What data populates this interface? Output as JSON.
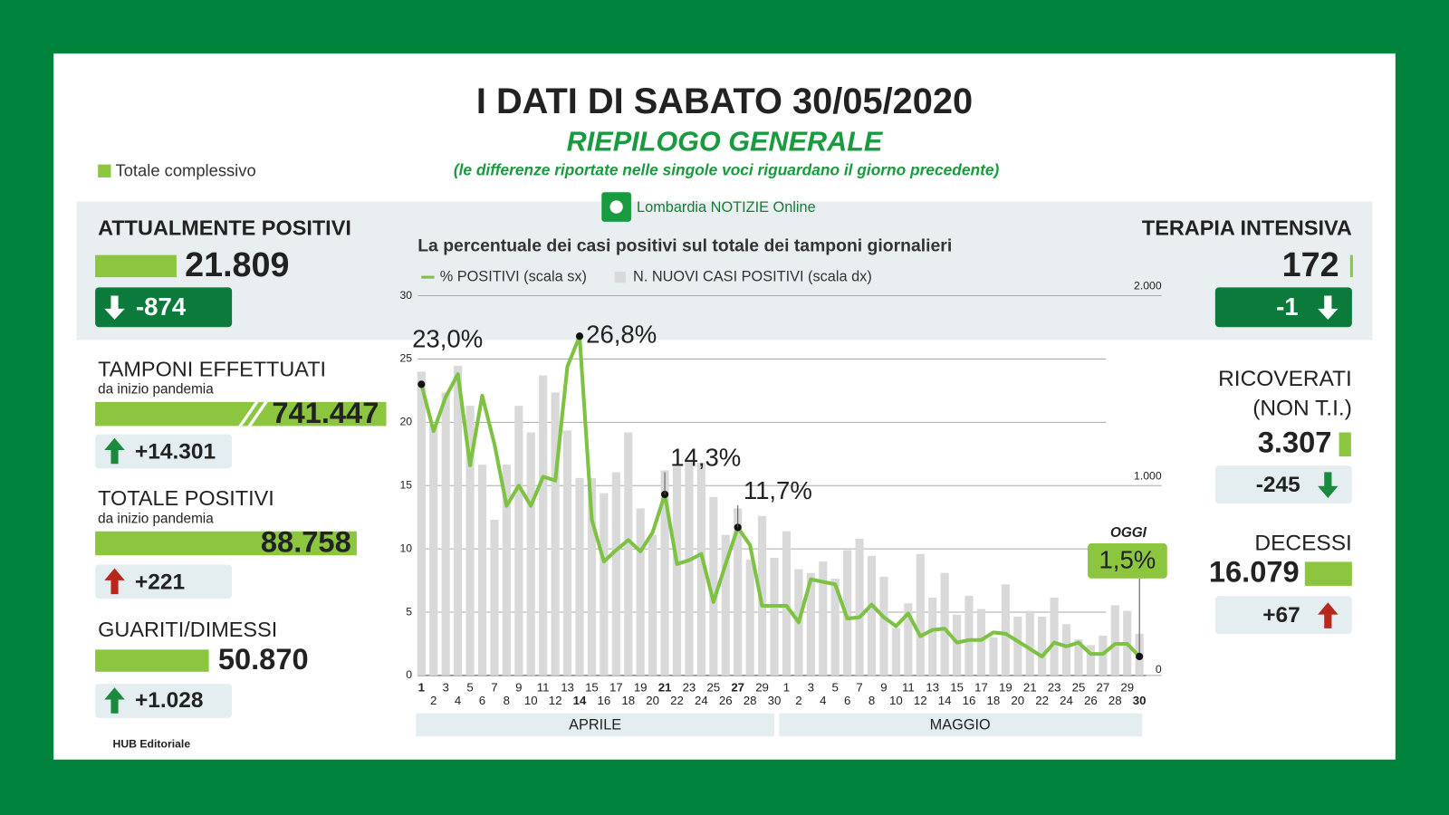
{
  "header": {
    "title": "I DATI DI SABATO 30/05/2020",
    "subtitle": "RIEPILOGO GENERALE",
    "note": "(le differenze riportate nelle singole voci riguardano il giorno precedente)",
    "legend": "Totale complessivo",
    "brand": "Lombardia NOTIZIE Online"
  },
  "left_stats": [
    {
      "label": "ATTUALMENTE POSITIVI",
      "value": "21.809",
      "change": "-874"
    },
    {
      "label": "TAMPONI EFFETTUATI",
      "sublabel": "da inizio pandemia",
      "value": "741.447",
      "change": "+14.301"
    },
    {
      "label": "TOTALE POSITIVI",
      "sublabel": "da inizio pandemia",
      "value": "88.758",
      "change": "+221"
    },
    {
      "label": "GUARITI/DIMESSI",
      "value": "50.870",
      "change": "+1.028"
    }
  ],
  "right_stats": [
    {
      "label": "TERAPIA INTENSIVA",
      "value": "172",
      "change": "-1"
    },
    {
      "label": "RICOVERATI",
      "sublabel": "(NON T.I.)",
      "value": "3.307",
      "change": "-245"
    },
    {
      "label": "DECESSI",
      "value": "16.079",
      "change": "+67"
    }
  ],
  "footer": "HUB Editoriale",
  "chart_data": {
    "type": "bar_line",
    "title": "La percentuale dei casi positivi sul totale dei tamponi giornalieri",
    "categories": [
      "1",
      "2",
      "3",
      "4",
      "5",
      "6",
      "7",
      "8",
      "9",
      "10",
      "11",
      "12",
      "13",
      "14",
      "15",
      "16",
      "17",
      "18",
      "19",
      "20",
      "21",
      "22",
      "23",
      "24",
      "25",
      "26",
      "27",
      "28",
      "29",
      "30",
      "1",
      "2",
      "3",
      "4",
      "5",
      "6",
      "7",
      "8",
      "9",
      "10",
      "11",
      "12",
      "13",
      "14",
      "15",
      "16",
      "17",
      "18",
      "19",
      "20",
      "21",
      "22",
      "23",
      "24",
      "25",
      "26",
      "27",
      "28",
      "29",
      "30"
    ],
    "months": [
      "APRILE",
      "MAGGIO"
    ],
    "annotation": "OGGI",
    "series": [
      {
        "name": "% POSITIVI (scala sx)",
        "type": "line",
        "color": "#7dc242",
        "values": [
          23.0,
          19.3,
          22,
          23.8,
          16.6,
          22.1,
          18.3,
          13.4,
          15,
          13.4,
          15.7,
          15.4,
          24.4,
          26.8,
          12.3,
          9,
          9.9,
          10.7,
          9.8,
          11.3,
          14.3,
          8.8,
          9.1,
          9.6,
          5.8,
          8.8,
          11.7,
          10.3,
          5.5,
          5.5,
          5.5,
          4.2,
          7.6,
          7.4,
          7.2,
          4.5,
          4.6,
          5.6,
          4.6,
          3.9,
          4.9,
          3.1,
          3.6,
          3.7,
          2.6,
          2.8,
          2.8,
          3.4,
          3.3,
          2.7,
          2.1,
          1.5,
          2.6,
          2.3,
          2.6,
          1.7,
          1.7,
          2.5,
          2.5,
          1.5
        ],
        "value_labels": [
          "23,0%",
          null,
          null,
          null,
          null,
          null,
          null,
          null,
          null,
          null,
          null,
          null,
          null,
          "26,8%",
          null,
          null,
          null,
          null,
          null,
          null,
          "14,3%",
          null,
          null,
          null,
          null,
          null,
          "11,7%",
          null,
          null,
          null,
          null,
          null,
          null,
          null,
          null,
          null,
          null,
          null,
          null,
          null,
          null,
          null,
          null,
          null,
          null,
          null,
          null,
          null,
          null,
          null,
          null,
          null,
          null,
          null,
          null,
          null,
          null,
          null,
          null,
          "1,5%"
        ]
      },
      {
        "name": "N. NUOVI CASI POSITIVI (scala dx)",
        "type": "bar",
        "axis": "y2",
        "color": "#d9d9d9",
        "values": [
          1600,
          1320,
          1490,
          1630,
          1420,
          1110,
          820,
          1110,
          1420,
          1280,
          1580,
          1490,
          1290,
          1040,
          1040,
          960,
          1070,
          1280,
          880,
          740,
          1080,
          1100,
          1140,
          1120,
          940,
          740,
          880,
          610,
          840,
          620,
          760,
          560,
          540,
          600,
          510,
          660,
          720,
          630,
          520,
          250,
          380,
          640,
          410,
          540,
          320,
          420,
          350,
          200,
          480,
          310,
          340,
          310,
          410,
          270,
          190,
          160,
          210,
          370,
          340,
          220
        ]
      }
    ],
    "ylim": [
      0,
      30
    ],
    "yticks": [
      0,
      5,
      10,
      15,
      20,
      25,
      30
    ],
    "y2lim": [
      0,
      2000
    ],
    "y2ticks": [
      0,
      {
        "value": 1000,
        "label": "1.000"
      },
      {
        "value": 2000,
        "label": "2.000"
      }
    ],
    "grid": true
  }
}
